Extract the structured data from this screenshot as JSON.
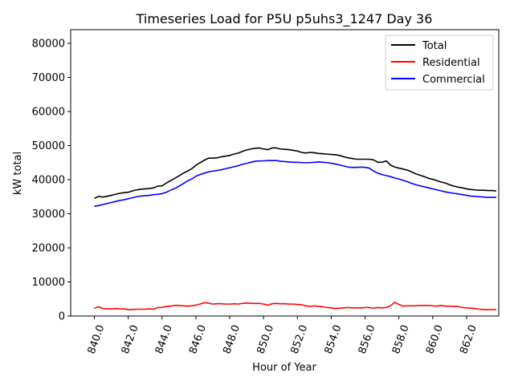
{
  "chart_data": {
    "type": "line",
    "title": "Timeseries Load for P5U p5uhs3_1247  Day 36",
    "xlabel": "Hour of Year",
    "ylabel": "kW total",
    "xlim": [
      838.6,
      863.9
    ],
    "ylim": [
      0,
      84000
    ],
    "xticks": [
      840,
      842,
      844,
      846,
      848,
      850,
      852,
      854,
      856,
      858,
      860,
      862
    ],
    "xtick_labels": [
      "840.0",
      "842.0",
      "844.0",
      "846.0",
      "848.0",
      "850.0",
      "852.0",
      "854.0",
      "856.0",
      "858.0",
      "860.0",
      "862.0"
    ],
    "yticks": [
      0,
      10000,
      20000,
      30000,
      40000,
      50000,
      60000,
      70000,
      80000
    ],
    "ytick_labels": [
      "0",
      "10000",
      "20000",
      "30000",
      "40000",
      "50000",
      "60000",
      "70000",
      "80000"
    ],
    "legend_position": "top-right",
    "x": [
      840.0,
      840.25,
      840.5,
      840.75,
      841.0,
      841.25,
      841.5,
      841.75,
      842.0,
      842.25,
      842.5,
      842.75,
      843.0,
      843.25,
      843.5,
      843.75,
      844.0,
      844.25,
      844.5,
      844.75,
      845.0,
      845.25,
      845.5,
      845.75,
      846.0,
      846.25,
      846.5,
      846.75,
      847.0,
      847.25,
      847.5,
      847.75,
      848.0,
      848.25,
      848.5,
      848.75,
      849.0,
      849.25,
      849.5,
      849.75,
      850.0,
      850.25,
      850.5,
      850.75,
      851.0,
      851.25,
      851.5,
      851.75,
      852.0,
      852.25,
      852.5,
      852.75,
      853.0,
      853.25,
      853.5,
      853.75,
      854.0,
      854.25,
      854.5,
      854.75,
      855.0,
      855.25,
      855.5,
      855.75,
      856.0,
      856.25,
      856.5,
      856.75,
      857.0,
      857.25,
      857.5,
      857.75,
      858.0,
      858.25,
      858.5,
      858.75,
      859.0,
      859.25,
      859.5,
      859.75,
      860.0,
      860.25,
      860.5,
      860.75,
      861.0,
      861.25,
      861.5,
      861.75,
      862.0,
      862.25,
      862.5,
      862.75,
      863.0,
      863.25,
      863.5,
      863.75
    ],
    "series": [
      {
        "name": "Total",
        "color": "#000000",
        "values": [
          34500,
          35100,
          34900,
          35100,
          35400,
          35700,
          36000,
          36200,
          36300,
          36700,
          37000,
          37200,
          37300,
          37400,
          37600,
          38100,
          38200,
          39000,
          39700,
          40400,
          41100,
          41900,
          42500,
          43200,
          44200,
          45000,
          45700,
          46300,
          46300,
          46400,
          46700,
          46900,
          47100,
          47500,
          47800,
          48300,
          48700,
          49000,
          49200,
          49300,
          49000,
          48800,
          49300,
          49300,
          49000,
          48900,
          48800,
          48600,
          48400,
          48000,
          47800,
          48000,
          47900,
          47700,
          47600,
          47500,
          47400,
          47300,
          47100,
          46700,
          46400,
          46200,
          46000,
          46000,
          46000,
          46000,
          45800,
          45100,
          45100,
          45500,
          44300,
          43700,
          43400,
          43100,
          42800,
          42300,
          41700,
          41300,
          40900,
          40400,
          40100,
          39700,
          39300,
          39000,
          38500,
          38100,
          37800,
          37600,
          37300,
          37100,
          37000,
          36900,
          36900,
          36800,
          36800,
          36700
        ]
      },
      {
        "name": "Residential",
        "color": "#ff0000",
        "values": [
          2300,
          2700,
          2200,
          2100,
          2100,
          2200,
          2100,
          2100,
          1900,
          1900,
          2000,
          2000,
          2000,
          2100,
          2000,
          2500,
          2500,
          2800,
          2900,
          3100,
          3100,
          3000,
          2900,
          3000,
          3200,
          3500,
          3900,
          3800,
          3500,
          3600,
          3600,
          3500,
          3500,
          3600,
          3500,
          3700,
          3800,
          3700,
          3700,
          3700,
          3500,
          3200,
          3600,
          3700,
          3600,
          3600,
          3500,
          3500,
          3400,
          3300,
          3000,
          2800,
          3000,
          2800,
          2700,
          2500,
          2400,
          2200,
          2300,
          2400,
          2500,
          2400,
          2400,
          2400,
          2500,
          2500,
          2300,
          2500,
          2400,
          2500,
          3000,
          4000,
          3400,
          2900,
          3000,
          3000,
          3000,
          3100,
          3100,
          3100,
          3000,
          2900,
          3100,
          2900,
          2900,
          2800,
          2800,
          2500,
          2400,
          2300,
          2200,
          2000,
          1900,
          1900,
          1900,
          1900
        ]
      },
      {
        "name": "Commercial",
        "color": "#0000ff",
        "values": [
          32200,
          32400,
          32700,
          33000,
          33300,
          33600,
          33900,
          34100,
          34400,
          34700,
          35000,
          35200,
          35300,
          35400,
          35600,
          35700,
          35900,
          36300,
          36900,
          37400,
          38100,
          38800,
          39600,
          40200,
          41000,
          41500,
          41900,
          42300,
          42500,
          42700,
          42900,
          43200,
          43500,
          43800,
          44100,
          44500,
          44800,
          45100,
          45400,
          45500,
          45500,
          45600,
          45600,
          45600,
          45400,
          45300,
          45200,
          45100,
          45100,
          45000,
          45000,
          45000,
          45100,
          45200,
          45100,
          45000,
          44800,
          44600,
          44300,
          44000,
          43700,
          43600,
          43600,
          43700,
          43600,
          43400,
          42500,
          41900,
          41500,
          41200,
          40900,
          40500,
          40200,
          39800,
          39400,
          38900,
          38500,
          38200,
          37900,
          37600,
          37300,
          37000,
          36700,
          36400,
          36200,
          36000,
          35800,
          35600,
          35400,
          35200,
          35100,
          35000,
          34900,
          34800,
          34800,
          34800
        ]
      }
    ]
  }
}
